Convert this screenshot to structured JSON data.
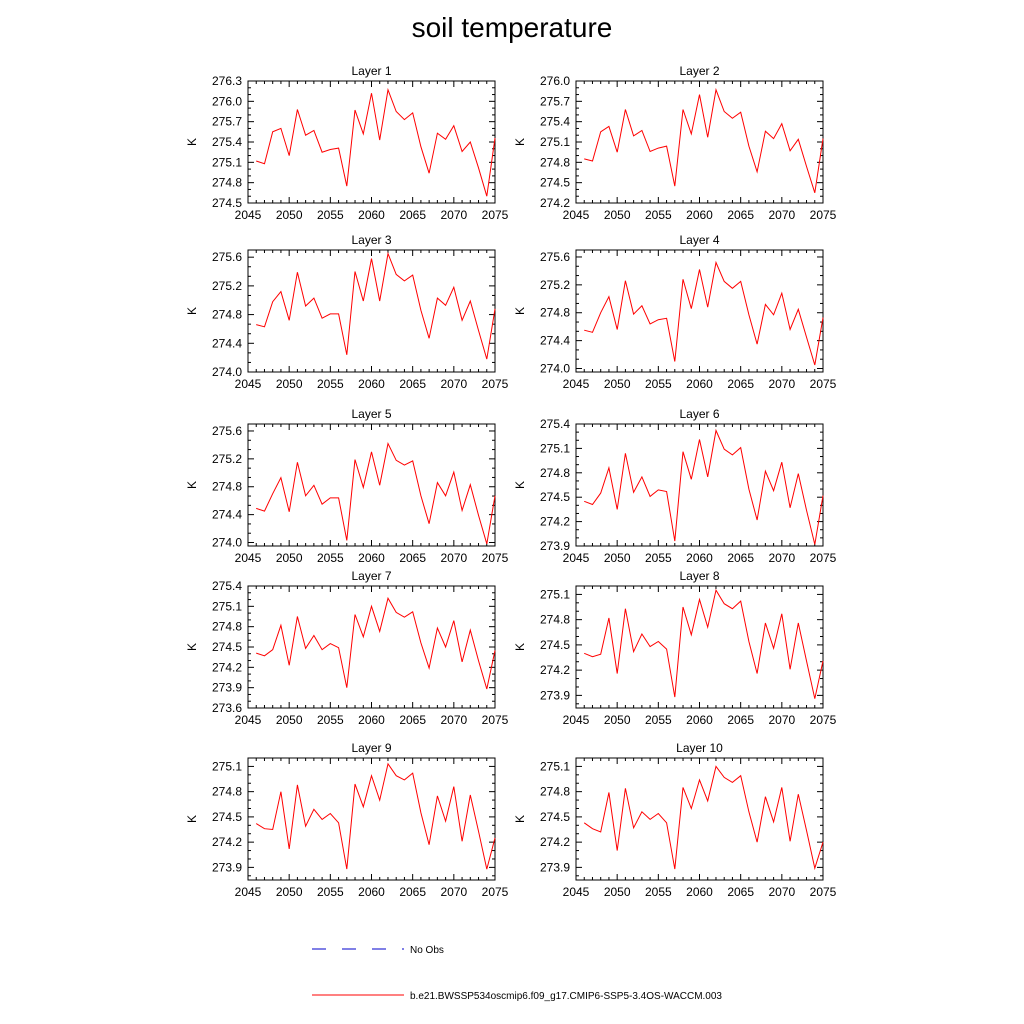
{
  "figure": {
    "title": "soil temperature"
  },
  "colors": {
    "series_model": "#ff0000",
    "series_obs": "#0000cc",
    "axis": "#000000"
  },
  "legend": {
    "items": [
      {
        "label": "No Obs",
        "style": "dashed",
        "color": "#0000cc"
      },
      {
        "label": "b.e21.BWSSP534oscmip6.f09_g17.CMIP6-SSP5-3.4OS-WACCM.003",
        "style": "solid",
        "color": "#ff0000"
      }
    ]
  },
  "chart_data": [
    {
      "type": "line",
      "title": "Layer 1",
      "ylabel": "K",
      "xlim": [
        2045,
        2075
      ],
      "xticks": [
        2045,
        2050,
        2055,
        2060,
        2065,
        2070,
        2075
      ],
      "ylim": [
        274.5,
        276.3
      ],
      "yticks": [
        274.5,
        274.8,
        275.1,
        275.4,
        275.7,
        276.0,
        276.3
      ],
      "x": [
        2046,
        2047,
        2048,
        2049,
        2050,
        2051,
        2052,
        2053,
        2054,
        2055,
        2056,
        2057,
        2058,
        2059,
        2060,
        2061,
        2062,
        2063,
        2064,
        2065,
        2066,
        2067,
        2068,
        2069,
        2070,
        2071,
        2072,
        2073,
        2074,
        2075
      ],
      "series": [
        {
          "name": "b.e21.BWSSP534oscmip6.f09_g17.CMIP6-SSP5-3.4OS-WACCM.003",
          "values": [
            275.12,
            275.08,
            275.55,
            275.6,
            275.2,
            275.88,
            275.5,
            275.57,
            275.25,
            275.29,
            275.31,
            274.75,
            275.87,
            275.52,
            276.12,
            275.43,
            276.17,
            275.85,
            275.73,
            275.83,
            275.33,
            274.94,
            275.53,
            275.44,
            275.64,
            275.26,
            275.4,
            275.02,
            274.6,
            275.46
          ]
        }
      ]
    },
    {
      "type": "line",
      "title": "Layer 2",
      "ylabel": "K",
      "xlim": [
        2045,
        2075
      ],
      "xticks": [
        2045,
        2050,
        2055,
        2060,
        2065,
        2070,
        2075
      ],
      "ylim": [
        274.2,
        276.0
      ],
      "yticks": [
        274.2,
        274.5,
        274.8,
        275.1,
        275.4,
        275.7,
        276.0
      ],
      "x": [
        2046,
        2047,
        2048,
        2049,
        2050,
        2051,
        2052,
        2053,
        2054,
        2055,
        2056,
        2057,
        2058,
        2059,
        2060,
        2061,
        2062,
        2063,
        2064,
        2065,
        2066,
        2067,
        2068,
        2069,
        2070,
        2071,
        2072,
        2073,
        2074,
        2075
      ],
      "series": [
        {
          "name": "b.e21.BWSSP534oscmip6.f09_g17.CMIP6-SSP5-3.4OS-WACCM.003",
          "values": [
            274.85,
            274.82,
            275.25,
            275.33,
            274.95,
            275.58,
            275.19,
            275.27,
            274.96,
            275.01,
            275.04,
            274.45,
            275.58,
            275.22,
            275.8,
            275.17,
            275.87,
            275.55,
            275.45,
            275.54,
            275.04,
            274.66,
            275.26,
            275.15,
            275.37,
            274.97,
            275.14,
            274.74,
            274.35,
            275.15
          ]
        }
      ]
    },
    {
      "type": "line",
      "title": "Layer 3",
      "ylabel": "K",
      "xlim": [
        2045,
        2075
      ],
      "xticks": [
        2045,
        2050,
        2055,
        2060,
        2065,
        2070,
        2075
      ],
      "ylim": [
        274.0,
        275.7
      ],
      "yticks": [
        274.0,
        274.4,
        274.8,
        275.2,
        275.6
      ],
      "x": [
        2046,
        2047,
        2048,
        2049,
        2050,
        2051,
        2052,
        2053,
        2054,
        2055,
        2056,
        2057,
        2058,
        2059,
        2060,
        2061,
        2062,
        2063,
        2064,
        2065,
        2066,
        2067,
        2068,
        2069,
        2070,
        2071,
        2072,
        2073,
        2074,
        2075
      ],
      "series": [
        {
          "name": "b.e21.BWSSP534oscmip6.f09_g17.CMIP6-SSP5-3.4OS-WACCM.003",
          "values": [
            274.66,
            274.63,
            274.98,
            275.12,
            274.72,
            275.39,
            274.92,
            275.03,
            274.75,
            274.81,
            274.81,
            274.24,
            275.4,
            274.99,
            275.58,
            274.99,
            275.65,
            275.36,
            275.27,
            275.35,
            274.86,
            274.47,
            275.03,
            274.93,
            275.18,
            274.72,
            274.99,
            274.58,
            274.18,
            274.88
          ]
        }
      ]
    },
    {
      "type": "line",
      "title": "Layer 4",
      "ylabel": "K",
      "xlim": [
        2045,
        2075
      ],
      "xticks": [
        2045,
        2050,
        2055,
        2060,
        2065,
        2070,
        2075
      ],
      "ylim": [
        273.95,
        275.7
      ],
      "yticks": [
        274.0,
        274.4,
        274.8,
        275.2,
        275.6
      ],
      "x": [
        2046,
        2047,
        2048,
        2049,
        2050,
        2051,
        2052,
        2053,
        2054,
        2055,
        2056,
        2057,
        2058,
        2059,
        2060,
        2061,
        2062,
        2063,
        2064,
        2065,
        2066,
        2067,
        2068,
        2069,
        2070,
        2071,
        2072,
        2073,
        2074,
        2075
      ],
      "series": [
        {
          "name": "b.e21.BWSSP534oscmip6.f09_g17.CMIP6-SSP5-3.4OS-WACCM.003",
          "values": [
            274.55,
            274.52,
            274.8,
            275.03,
            274.56,
            275.26,
            274.78,
            274.9,
            274.64,
            274.7,
            274.72,
            274.1,
            275.28,
            274.86,
            275.42,
            274.88,
            275.52,
            275.25,
            275.15,
            275.25,
            274.77,
            274.35,
            274.92,
            274.77,
            275.08,
            274.56,
            274.85,
            274.45,
            274.05,
            274.73
          ]
        }
      ]
    },
    {
      "type": "line",
      "title": "Layer 5",
      "ylabel": "K",
      "xlim": [
        2045,
        2075
      ],
      "xticks": [
        2045,
        2050,
        2055,
        2060,
        2065,
        2070,
        2075
      ],
      "ylim": [
        273.95,
        275.7
      ],
      "yticks": [
        274.0,
        274.4,
        274.8,
        275.2,
        275.6
      ],
      "x": [
        2046,
        2047,
        2048,
        2049,
        2050,
        2051,
        2052,
        2053,
        2054,
        2055,
        2056,
        2057,
        2058,
        2059,
        2060,
        2061,
        2062,
        2063,
        2064,
        2065,
        2066,
        2067,
        2068,
        2069,
        2070,
        2071,
        2072,
        2073,
        2074,
        2075
      ],
      "series": [
        {
          "name": "b.e21.BWSSP534oscmip6.f09_g17.CMIP6-SSP5-3.4OS-WACCM.003",
          "values": [
            274.49,
            274.45,
            274.7,
            274.93,
            274.44,
            275.15,
            274.67,
            274.82,
            274.55,
            274.64,
            274.64,
            274.03,
            275.19,
            274.79,
            275.3,
            274.82,
            275.42,
            275.18,
            275.11,
            275.17,
            274.67,
            274.27,
            274.86,
            274.67,
            275.01,
            274.46,
            274.83,
            274.39,
            273.98,
            274.67
          ]
        }
      ]
    },
    {
      "type": "line",
      "title": "Layer 6",
      "ylabel": "K",
      "xlim": [
        2045,
        2075
      ],
      "xticks": [
        2045,
        2050,
        2055,
        2060,
        2065,
        2070,
        2075
      ],
      "ylim": [
        273.9,
        275.4
      ],
      "yticks": [
        273.9,
        274.2,
        274.5,
        274.8,
        275.1,
        275.4
      ],
      "x": [
        2046,
        2047,
        2048,
        2049,
        2050,
        2051,
        2052,
        2053,
        2054,
        2055,
        2056,
        2057,
        2058,
        2059,
        2060,
        2061,
        2062,
        2063,
        2064,
        2065,
        2066,
        2067,
        2068,
        2069,
        2070,
        2071,
        2072,
        2073,
        2074,
        2075
      ],
      "series": [
        {
          "name": "b.e21.BWSSP534oscmip6.f09_g17.CMIP6-SSP5-3.4OS-WACCM.003",
          "values": [
            274.45,
            274.41,
            274.55,
            274.86,
            274.35,
            275.04,
            274.56,
            274.75,
            274.51,
            274.59,
            274.57,
            273.96,
            275.06,
            274.72,
            275.21,
            274.75,
            275.32,
            275.09,
            275.02,
            275.11,
            274.6,
            274.22,
            274.82,
            274.58,
            274.93,
            274.37,
            274.79,
            274.34,
            273.92,
            274.52
          ]
        }
      ]
    },
    {
      "type": "line",
      "title": "Layer 7",
      "ylabel": "K",
      "xlim": [
        2045,
        2075
      ],
      "xticks": [
        2045,
        2050,
        2055,
        2060,
        2065,
        2070,
        2075
      ],
      "ylim": [
        273.6,
        275.4
      ],
      "yticks": [
        273.6,
        273.9,
        274.2,
        274.5,
        274.8,
        275.1,
        275.4
      ],
      "x": [
        2046,
        2047,
        2048,
        2049,
        2050,
        2051,
        2052,
        2053,
        2054,
        2055,
        2056,
        2057,
        2058,
        2059,
        2060,
        2061,
        2062,
        2063,
        2064,
        2065,
        2066,
        2067,
        2068,
        2069,
        2070,
        2071,
        2072,
        2073,
        2074,
        2075
      ],
      "series": [
        {
          "name": "b.e21.BWSSP534oscmip6.f09_g17.CMIP6-SSP5-3.4OS-WACCM.003",
          "values": [
            274.41,
            274.37,
            274.46,
            274.82,
            274.23,
            274.95,
            274.48,
            274.67,
            274.46,
            274.55,
            274.49,
            273.9,
            274.98,
            274.65,
            275.1,
            274.73,
            275.22,
            275.01,
            274.94,
            275.02,
            274.56,
            274.19,
            274.78,
            274.5,
            274.89,
            274.28,
            274.75,
            274.3,
            273.88,
            274.45
          ]
        }
      ]
    },
    {
      "type": "line",
      "title": "Layer 8",
      "ylabel": "K",
      "xlim": [
        2045,
        2075
      ],
      "xticks": [
        2045,
        2050,
        2055,
        2060,
        2065,
        2070,
        2075
      ],
      "ylim": [
        273.75,
        275.2
      ],
      "yticks": [
        273.9,
        274.2,
        274.5,
        274.8,
        275.1
      ],
      "x": [
        2046,
        2047,
        2048,
        2049,
        2050,
        2051,
        2052,
        2053,
        2054,
        2055,
        2056,
        2057,
        2058,
        2059,
        2060,
        2061,
        2062,
        2063,
        2064,
        2065,
        2066,
        2067,
        2068,
        2069,
        2070,
        2071,
        2072,
        2073,
        2074,
        2075
      ],
      "series": [
        {
          "name": "b.e21.BWSSP534oscmip6.f09_g17.CMIP6-SSP5-3.4OS-WACCM.003",
          "values": [
            274.4,
            274.36,
            274.39,
            274.82,
            274.16,
            274.93,
            274.42,
            274.63,
            274.48,
            274.54,
            274.45,
            273.88,
            274.95,
            274.62,
            275.04,
            274.71,
            275.15,
            274.99,
            274.93,
            275.02,
            274.54,
            274.16,
            274.76,
            274.46,
            274.87,
            274.21,
            274.76,
            274.31,
            273.86,
            274.31
          ]
        }
      ]
    },
    {
      "type": "line",
      "title": "Layer 9",
      "ylabel": "K",
      "xlim": [
        2045,
        2075
      ],
      "xticks": [
        2045,
        2050,
        2055,
        2060,
        2065,
        2070,
        2075
      ],
      "ylim": [
        273.75,
        275.2
      ],
      "yticks": [
        273.9,
        274.2,
        274.5,
        274.8,
        275.1
      ],
      "x": [
        2046,
        2047,
        2048,
        2049,
        2050,
        2051,
        2052,
        2053,
        2054,
        2055,
        2056,
        2057,
        2058,
        2059,
        2060,
        2061,
        2062,
        2063,
        2064,
        2065,
        2066,
        2067,
        2068,
        2069,
        2070,
        2071,
        2072,
        2073,
        2074,
        2075
      ],
      "series": [
        {
          "name": "b.e21.BWSSP534oscmip6.f09_g17.CMIP6-SSP5-3.4OS-WACCM.003",
          "values": [
            274.42,
            274.36,
            274.35,
            274.8,
            274.12,
            274.88,
            274.39,
            274.59,
            274.47,
            274.54,
            274.43,
            273.88,
            274.89,
            274.62,
            274.99,
            274.7,
            275.13,
            274.99,
            274.94,
            275.02,
            274.55,
            274.17,
            274.75,
            274.45,
            274.86,
            274.21,
            274.76,
            274.33,
            273.88,
            274.25
          ]
        }
      ]
    },
    {
      "type": "line",
      "title": "Layer 10",
      "ylabel": "K",
      "xlim": [
        2045,
        2075
      ],
      "xticks": [
        2045,
        2050,
        2055,
        2060,
        2065,
        2070,
        2075
      ],
      "ylim": [
        273.75,
        275.2
      ],
      "yticks": [
        273.9,
        274.2,
        274.5,
        274.8,
        275.1
      ],
      "x": [
        2046,
        2047,
        2048,
        2049,
        2050,
        2051,
        2052,
        2053,
        2054,
        2055,
        2056,
        2057,
        2058,
        2059,
        2060,
        2061,
        2062,
        2063,
        2064,
        2065,
        2066,
        2067,
        2068,
        2069,
        2070,
        2071,
        2072,
        2073,
        2074,
        2075
      ],
      "series": [
        {
          "name": "b.e21.BWSSP534oscmip6.f09_g17.CMIP6-SSP5-3.4OS-WACCM.003",
          "values": [
            274.43,
            274.36,
            274.32,
            274.79,
            274.1,
            274.84,
            274.37,
            274.56,
            274.47,
            274.54,
            274.43,
            273.88,
            274.85,
            274.6,
            274.94,
            274.69,
            275.1,
            274.97,
            274.91,
            274.99,
            274.56,
            274.2,
            274.74,
            274.44,
            274.85,
            274.21,
            274.77,
            274.34,
            273.89,
            274.2
          ]
        }
      ]
    }
  ]
}
